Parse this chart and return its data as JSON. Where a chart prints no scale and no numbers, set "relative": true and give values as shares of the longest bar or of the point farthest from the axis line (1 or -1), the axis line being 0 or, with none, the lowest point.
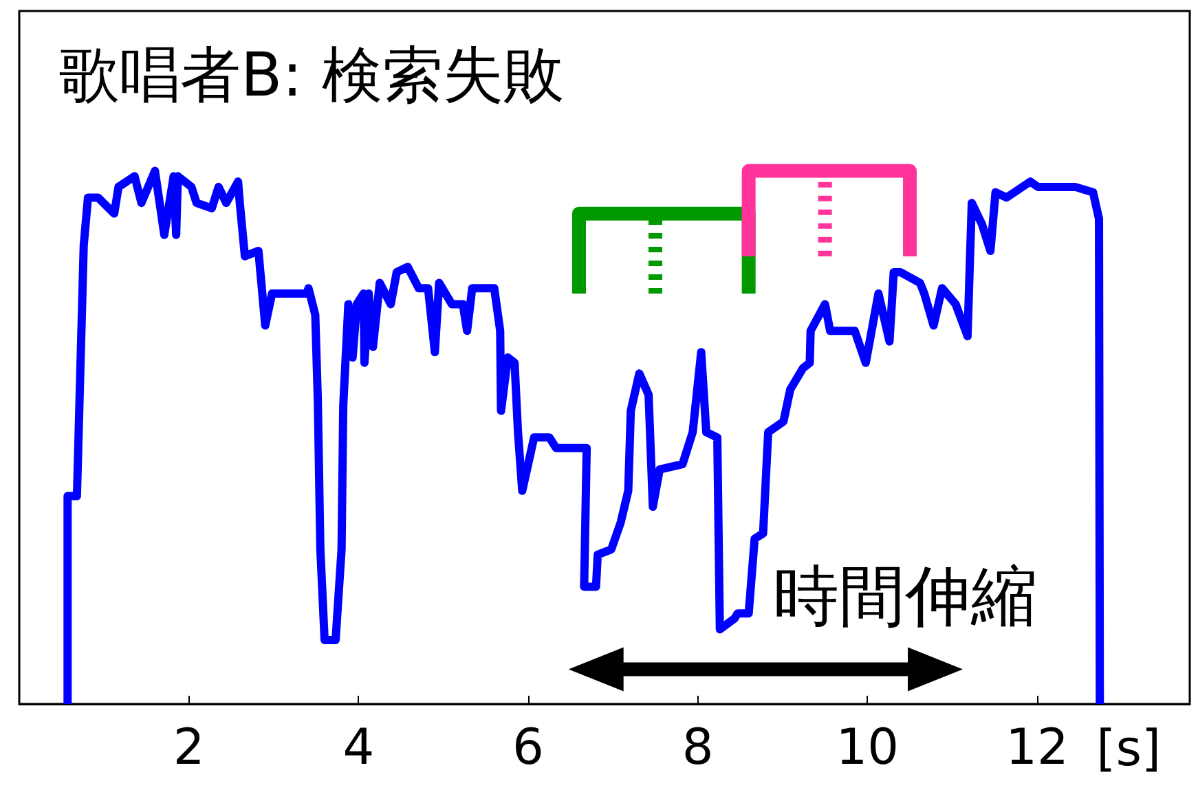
{
  "chart_data": {
    "type": "line",
    "title": "歌唱者B: 検索失敗",
    "xlabel": "[s]",
    "relative": true,
    "marker": "none",
    "xlim": [
      0,
      13.8
    ],
    "xticks": [
      2,
      4,
      6,
      8,
      10,
      12
    ],
    "annotations": [
      "時間伸縮"
    ],
    "series": [
      {
        "color": "#0000ff",
        "x": [
          0.57,
          0.57,
          0.68,
          0.76,
          0.81,
          0.93,
          1.12,
          1.17,
          1.36,
          1.44,
          1.52,
          1.6,
          1.71,
          1.82,
          1.85,
          1.87,
          2.03,
          2.09,
          2.27,
          2.35,
          2.44,
          2.58,
          2.6,
          2.66,
          2.82,
          2.9,
          2.98,
          3.39,
          3.41,
          3.49,
          3.52,
          3.55,
          3.6,
          3.73,
          3.8,
          3.82,
          3.88,
          3.93,
          3.98,
          4.06,
          4.07,
          4.12,
          4.17,
          4.25,
          4.38,
          4.45,
          4.58,
          4.71,
          4.82,
          4.9,
          4.95,
          5.1,
          5.23,
          5.28,
          5.34,
          5.6,
          5.67,
          5.68,
          5.76,
          5.84,
          5.88,
          5.93,
          6.07,
          6.25,
          6.33,
          6.64,
          6.69,
          6.66,
          6.8,
          6.82,
          6.98,
          7.09,
          7.18,
          7.21,
          7.31,
          7.42,
          7.47,
          7.55,
          7.82,
          7.94,
          8.04,
          8.1,
          8.23,
          8.26,
          8.43,
          8.47,
          8.6,
          8.67,
          8.77,
          8.83,
          9.01,
          9.09,
          9.24,
          9.32,
          9.33,
          9.5,
          9.56,
          9.85,
          9.98,
          10.13,
          10.26,
          10.31,
          10.39,
          10.62,
          10.67,
          10.78,
          10.88,
          11.04,
          11.18,
          11.23,
          11.35,
          11.45,
          11.51,
          11.64,
          11.92,
          12.01,
          12.45,
          12.66,
          12.73,
          12.74
        ],
        "values": [
          0,
          0.39,
          0.39,
          0.86,
          0.95,
          0.95,
          0.92,
          0.97,
          0.99,
          0.94,
          0.97,
          1.0,
          0.88,
          0.99,
          0.88,
          0.99,
          0.97,
          0.94,
          0.93,
          0.97,
          0.94,
          0.98,
          0.94,
          0.84,
          0.85,
          0.71,
          0.77,
          0.77,
          0.78,
          0.73,
          0.57,
          0.29,
          0.12,
          0.12,
          0.29,
          0.56,
          0.75,
          0.65,
          0.75,
          0.77,
          0.64,
          0.77,
          0.67,
          0.79,
          0.75,
          0.81,
          0.82,
          0.78,
          0.78,
          0.66,
          0.79,
          0.75,
          0.75,
          0.7,
          0.78,
          0.78,
          0.7,
          0.55,
          0.65,
          0.64,
          0.51,
          0.4,
          0.5,
          0.5,
          0.48,
          0.48,
          0.48,
          0.22,
          0.22,
          0.28,
          0.29,
          0.34,
          0.4,
          0.55,
          0.62,
          0.58,
          0.37,
          0.44,
          0.45,
          0.51,
          0.66,
          0.51,
          0.5,
          0.14,
          0.16,
          0.17,
          0.17,
          0.31,
          0.32,
          0.51,
          0.53,
          0.59,
          0.63,
          0.64,
          0.7,
          0.75,
          0.7,
          0.7,
          0.64,
          0.77,
          0.68,
          0.81,
          0.81,
          0.79,
          0.77,
          0.71,
          0.78,
          0.75,
          0.69,
          0.94,
          0.9,
          0.85,
          0.96,
          0.95,
          0.98,
          0.97,
          0.97,
          0.96,
          0.91,
          0
        ]
      },
      {
        "color": "#009900",
        "x": [
          6.6,
          6.6,
          8.6,
          8.6
        ],
        "values": [
          0.77,
          0.92,
          0.92,
          0.77
        ]
      },
      {
        "color": "#009900",
        "line_style": "dotted",
        "x": [
          7.5,
          7.5
        ],
        "values": [
          0.77,
          0.92
        ]
      },
      {
        "color": "#ff3399",
        "x": [
          8.6,
          8.6,
          10.5,
          10.5
        ],
        "values": [
          0.84,
          1.0,
          1.0,
          0.84
        ]
      },
      {
        "color": "#ff3399",
        "line_style": "dotted",
        "x": [
          9.5,
          9.5
        ],
        "values": [
          0.84,
          1.0
        ]
      },
      {
        "color": "#000000",
        "marker": "triangle",
        "x": [
          6.8,
          10.8
        ],
        "values": [
          0.065,
          0.065
        ]
      }
    ]
  }
}
